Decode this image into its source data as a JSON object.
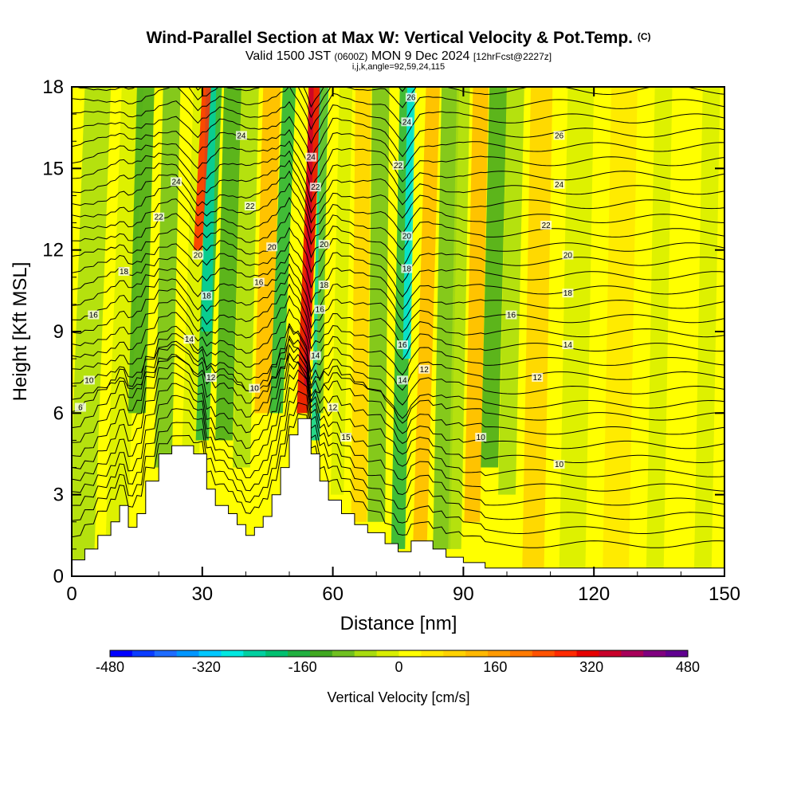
{
  "titles": {
    "main": "Wind-Parallel Section at Max W: Vertical Velocity & Pot.Temp.",
    "copyright": "(C)",
    "valid_prefix": "Valid 1500 JST",
    "valid_utc": "(0600Z)",
    "valid_date": "MON 9 Dec 2024",
    "forecast": "[12hrFcst@2227z]",
    "indices": "i,j,k,angle=92,59,24,115"
  },
  "colors": {
    "colorbar": [
      "#0000ff",
      "#0b3cff",
      "#1e6cff",
      "#0096ff",
      "#00c8ff",
      "#00e8e0",
      "#00d0a0",
      "#00c070",
      "#20b040",
      "#40a820",
      "#70c020",
      "#a8dc10",
      "#d8ee00",
      "#ffff00",
      "#ffe800",
      "#ffd200",
      "#ffb800",
      "#ff9a00",
      "#ff7a00",
      "#ff5200",
      "#ff2a00",
      "#e60000",
      "#c8002a",
      "#a8005a",
      "#800080",
      "#600090"
    ]
  },
  "chart_data": {
    "type": "heatmap",
    "title": "Wind-Parallel Section at Max W: Vertical Velocity & Pot.Temp.",
    "xlabel": "Distance [nm]",
    "ylabel": "Height [Kft MSL]",
    "xlim": [
      0,
      150
    ],
    "ylim": [
      0,
      18
    ],
    "xticks": [
      0,
      30,
      60,
      90,
      120,
      150
    ],
    "yticks": [
      0,
      3,
      6,
      9,
      12,
      15,
      18
    ],
    "colorbar": {
      "label": "Vertical Velocity [cm/s]",
      "range": [
        -480,
        480
      ],
      "tick_labels": [
        "-480",
        "-320",
        "-160",
        "0",
        "160",
        "320",
        "480"
      ]
    },
    "terrain": [
      [
        0,
        0.6
      ],
      [
        3,
        0.6
      ],
      [
        3,
        1
      ],
      [
        6,
        1
      ],
      [
        6,
        1.5
      ],
      [
        9,
        1.5
      ],
      [
        9,
        2
      ],
      [
        11,
        2
      ],
      [
        11,
        2.6
      ],
      [
        13,
        2.6
      ],
      [
        13,
        1.8
      ],
      [
        15,
        1.8
      ],
      [
        15,
        2.3
      ],
      [
        17,
        2.3
      ],
      [
        17,
        3.5
      ],
      [
        20,
        3.5
      ],
      [
        20,
        4.5
      ],
      [
        23,
        4.5
      ],
      [
        23,
        4.8
      ],
      [
        28,
        4.8
      ],
      [
        28,
        4.5
      ],
      [
        31,
        4.5
      ],
      [
        31,
        3.2
      ],
      [
        33,
        3.2
      ],
      [
        33,
        2.6
      ],
      [
        36,
        2.6
      ],
      [
        36,
        2.3
      ],
      [
        38,
        2.3
      ],
      [
        38,
        1.9
      ],
      [
        40,
        1.9
      ],
      [
        40,
        1.5
      ],
      [
        42,
        1.5
      ],
      [
        42,
        1.8
      ],
      [
        44,
        1.8
      ],
      [
        44,
        2.2
      ],
      [
        46,
        2.2
      ],
      [
        46,
        3
      ],
      [
        48,
        3
      ],
      [
        48,
        4
      ],
      [
        50,
        4
      ],
      [
        50,
        5.2
      ],
      [
        52,
        5.2
      ],
      [
        52,
        5.8
      ],
      [
        55,
        5.8
      ],
      [
        55,
        4.5
      ],
      [
        57,
        4.5
      ],
      [
        57,
        3.5
      ],
      [
        59,
        3.5
      ],
      [
        59,
        2.8
      ],
      [
        62,
        2.8
      ],
      [
        62,
        2.3
      ],
      [
        65,
        2.3
      ],
      [
        65,
        1.9
      ],
      [
        68,
        1.9
      ],
      [
        68,
        1.6
      ],
      [
        72,
        1.6
      ],
      [
        72,
        1.2
      ],
      [
        75,
        1.2
      ],
      [
        75,
        0.9
      ],
      [
        78,
        0.9
      ],
      [
        78,
        1.3
      ],
      [
        83,
        1.3
      ],
      [
        83,
        1
      ],
      [
        86,
        1
      ],
      [
        86,
        0.7
      ],
      [
        90,
        0.7
      ],
      [
        90,
        0.5
      ],
      [
        95,
        0.5
      ],
      [
        95,
        0.3
      ],
      [
        150,
        0.3
      ]
    ],
    "isentropes": [
      {
        "label": "6",
        "pos": [
          2,
          6.2
        ]
      },
      {
        "label": "10",
        "pos": [
          4,
          7.2
        ]
      },
      {
        "label": "16",
        "pos": [
          5,
          9.6
        ]
      },
      {
        "label": "18",
        "pos": [
          12,
          11.2
        ]
      },
      {
        "label": "22",
        "pos": [
          20,
          13.2
        ]
      },
      {
        "label": "24",
        "pos": [
          24,
          14.5
        ]
      },
      {
        "label": "20",
        "pos": [
          29,
          11.8
        ]
      },
      {
        "label": "18",
        "pos": [
          31,
          10.3
        ]
      },
      {
        "label": "14",
        "pos": [
          27,
          8.7
        ]
      },
      {
        "label": "12",
        "pos": [
          32,
          7.3
        ]
      },
      {
        "label": "24",
        "pos": [
          39,
          16.2
        ]
      },
      {
        "label": "22",
        "pos": [
          41,
          13.6
        ]
      },
      {
        "label": "20",
        "pos": [
          46,
          12.1
        ]
      },
      {
        "label": "16",
        "pos": [
          43,
          10.8
        ]
      },
      {
        "label": "10",
        "pos": [
          42,
          6.9
        ]
      },
      {
        "label": "24",
        "pos": [
          55,
          15.4
        ]
      },
      {
        "label": "22",
        "pos": [
          56,
          14.3
        ]
      },
      {
        "label": "20",
        "pos": [
          58,
          12.2
        ]
      },
      {
        "label": "18",
        "pos": [
          58,
          10.7
        ]
      },
      {
        "label": "16",
        "pos": [
          57,
          9.8
        ]
      },
      {
        "label": "14",
        "pos": [
          56,
          8.1
        ]
      },
      {
        "label": "12",
        "pos": [
          60,
          6.2
        ]
      },
      {
        "label": "15",
        "pos": [
          63,
          5.1
        ]
      },
      {
        "label": "26",
        "pos": [
          78,
          17.6
        ]
      },
      {
        "label": "24",
        "pos": [
          77,
          16.7
        ]
      },
      {
        "label": "22",
        "pos": [
          75,
          15.1
        ]
      },
      {
        "label": "20",
        "pos": [
          77,
          12.5
        ]
      },
      {
        "label": "18",
        "pos": [
          77,
          11.3
        ]
      },
      {
        "label": "16",
        "pos": [
          76,
          8.5
        ]
      },
      {
        "label": "14",
        "pos": [
          76,
          7.2
        ]
      },
      {
        "label": "12",
        "pos": [
          81,
          7.6
        ]
      },
      {
        "label": "10",
        "pos": [
          94,
          5.1
        ]
      },
      {
        "label": "16",
        "pos": [
          101,
          9.6
        ]
      },
      {
        "label": "12",
        "pos": [
          107,
          7.3
        ]
      },
      {
        "label": "10",
        "pos": [
          112,
          4.1
        ]
      },
      {
        "label": "26",
        "pos": [
          112,
          16.2
        ]
      },
      {
        "label": "24",
        "pos": [
          112,
          14.4
        ]
      },
      {
        "label": "22",
        "pos": [
          109,
          12.9
        ]
      },
      {
        "label": "20",
        "pos": [
          114,
          11.8
        ]
      },
      {
        "label": "18",
        "pos": [
          114,
          10.4
        ]
      },
      {
        "label": "14",
        "pos": [
          114,
          8.5
        ]
      }
    ]
  }
}
